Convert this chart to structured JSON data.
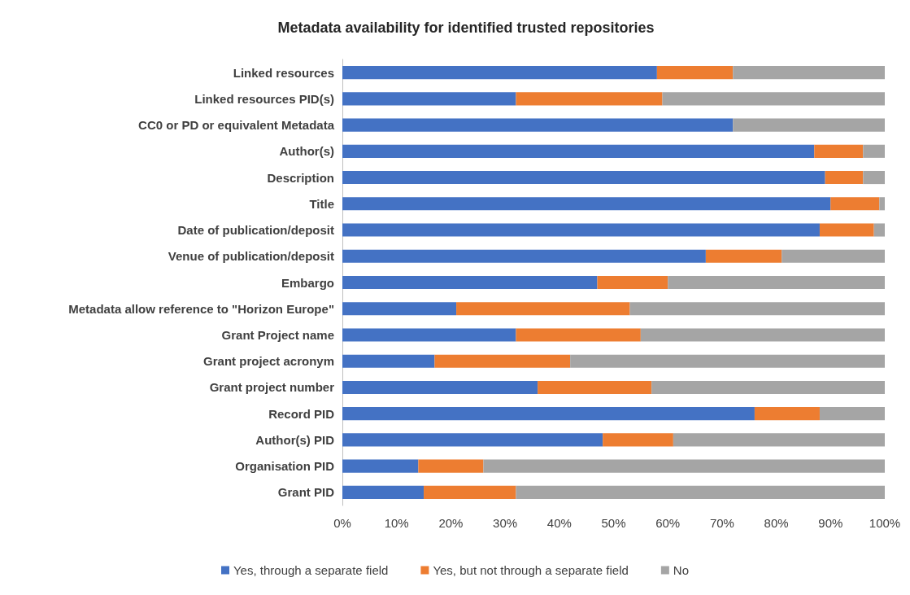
{
  "chart_data": {
    "type": "bar",
    "title": "Metadata availability for identified trusted repositories",
    "orientation": "horizontal",
    "stacked": true,
    "categories": [
      "Linked resources",
      "Linked resources PID(s)",
      "CC0 or PD or equivalent Metadata",
      "Author(s)",
      "Description",
      "Title",
      "Date of publication/deposit",
      "Venue of publication/deposit",
      "Embargo",
      "Metadata allow reference to \"Horizon Europe\"",
      "Grant Project name",
      "Grant project acronym",
      "Grant project number",
      "Record PID",
      "Author(s) PID",
      "Organisation PID",
      "Grant PID"
    ],
    "series": [
      {
        "name": "Yes, through a separate field",
        "color": "#4472c4",
        "values": [
          58,
          32,
          72,
          87,
          89,
          90,
          88,
          67,
          47,
          21,
          32,
          17,
          36,
          76,
          48,
          14,
          15
        ]
      },
      {
        "name": "Yes, but not through a separate field",
        "color": "#ed7d31",
        "values": [
          14,
          27,
          0,
          9,
          7,
          9,
          10,
          14,
          13,
          32,
          23,
          25,
          21,
          12,
          13,
          12,
          17
        ]
      },
      {
        "name": "No",
        "color": "#a5a5a5",
        "values": [
          28,
          41,
          28,
          4,
          4,
          1,
          2,
          19,
          40,
          47,
          45,
          58,
          43,
          12,
          39,
          74,
          68
        ]
      }
    ],
    "xlim": [
      0,
      100
    ],
    "xticks": [
      {
        "value": 0,
        "label": "0%"
      },
      {
        "value": 10,
        "label": "10%"
      },
      {
        "value": 20,
        "label": "20%"
      },
      {
        "value": 30,
        "label": "30%"
      },
      {
        "value": 40,
        "label": "40%"
      },
      {
        "value": 50,
        "label": "50%"
      },
      {
        "value": 60,
        "label": "60%"
      },
      {
        "value": 70,
        "label": "70%"
      },
      {
        "value": 80,
        "label": "80%"
      },
      {
        "value": 90,
        "label": "90%"
      },
      {
        "value": 100,
        "label": "100%"
      }
    ],
    "grid": false,
    "legend": "bottom"
  }
}
